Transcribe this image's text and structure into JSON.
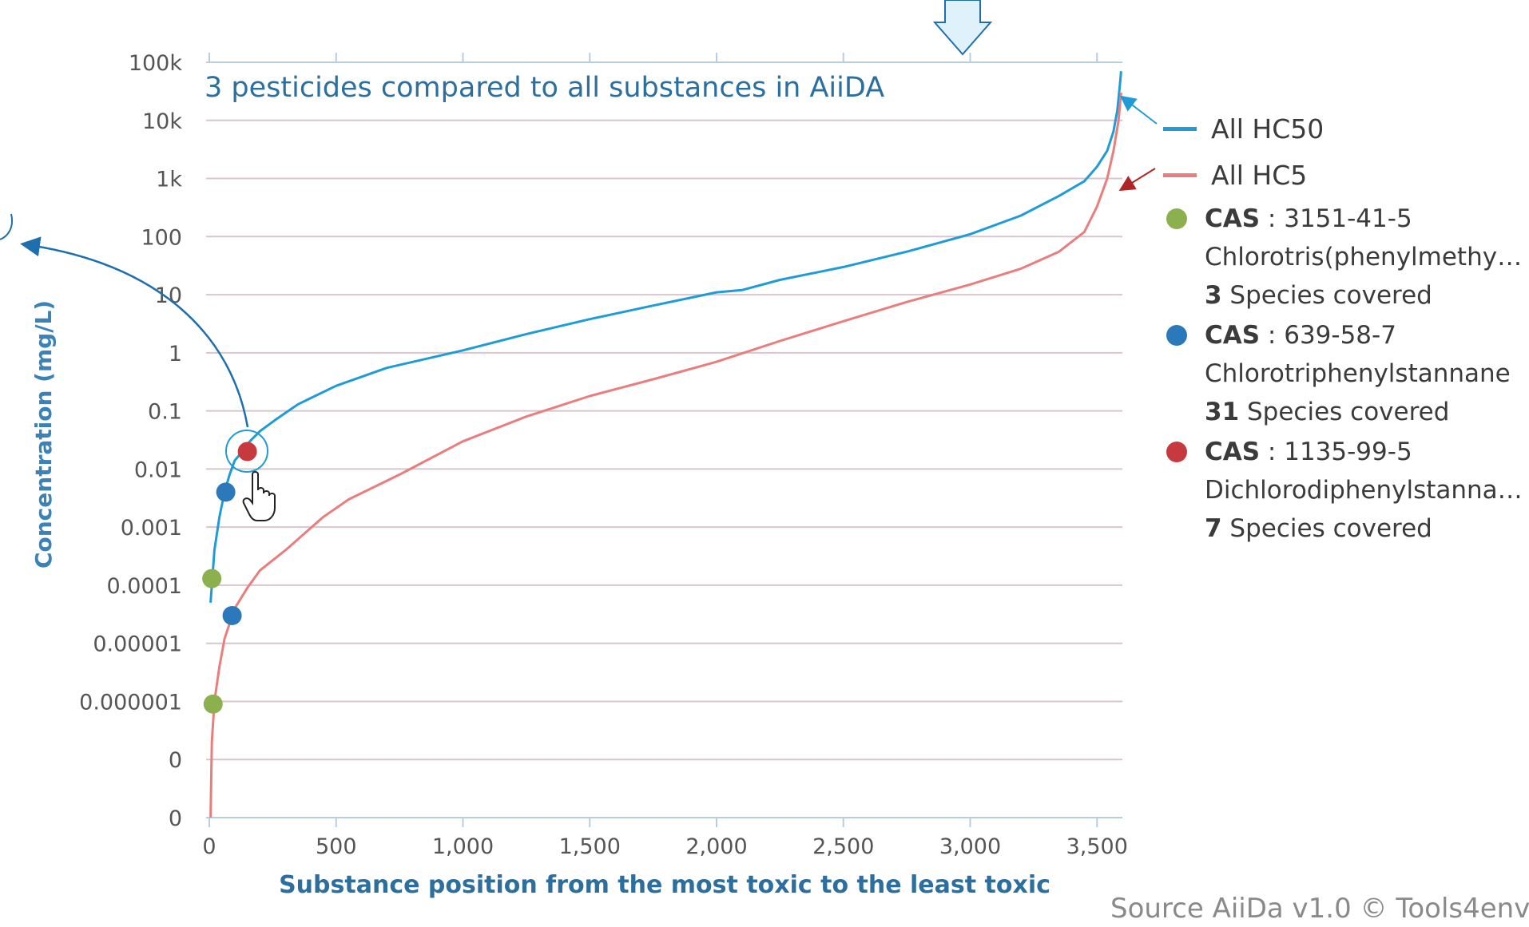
{
  "chart_data": {
    "type": "line",
    "title": "3 pesticides compared to all substances in AiiDA",
    "xlabel": "Substance position from the most toxic to the least toxic",
    "ylabel": "Concentration (mg/L)",
    "x_ticks": [
      "0",
      "500",
      "1,000",
      "1,500",
      "2,000",
      "2,500",
      "3,000",
      "3,500"
    ],
    "x_tick_values": [
      0,
      500,
      1000,
      1500,
      2000,
      2500,
      3000,
      3500
    ],
    "xlim": [
      0,
      3600
    ],
    "y_ticks": [
      "0",
      "0",
      "0.000001",
      "0.00001",
      "0.0001",
      "0.001",
      "0.01",
      "0.1",
      "1",
      "10",
      "100",
      "1k",
      "10k",
      "100k"
    ],
    "y_scale": "log",
    "y_decade_range": [
      -8,
      5
    ],
    "grid": true,
    "legend_position": "right",
    "series": [
      {
        "name": "All HC50",
        "color": "#1f9bd7",
        "x": [
          5,
          20,
          40,
          60,
          80,
          100,
          130,
          160,
          200,
          260,
          350,
          500,
          700,
          1000,
          1250,
          1500,
          1750,
          2000,
          2100,
          2250,
          2500,
          2750,
          3000,
          3200,
          3350,
          3450,
          3500,
          3540,
          3565,
          3580,
          3590,
          3595
        ],
        "y": [
          5e-05,
          0.0004,
          0.0015,
          0.004,
          0.008,
          0.014,
          0.02,
          0.03,
          0.045,
          0.07,
          0.13,
          0.27,
          0.55,
          1.1,
          2.1,
          3.8,
          6.5,
          11,
          12,
          18,
          30,
          55,
          110,
          230,
          500,
          900,
          1600,
          3000,
          6500,
          15000,
          40000,
          70000
        ]
      },
      {
        "name": "All HC5",
        "color": "#ea7e7e",
        "x": [
          5,
          10,
          20,
          40,
          60,
          100,
          150,
          200,
          300,
          450,
          550,
          750,
          1000,
          1250,
          1500,
          1750,
          2000,
          2250,
          2500,
          2750,
          3000,
          3200,
          3350,
          3450,
          3500,
          3540,
          3565,
          3585,
          3595
        ],
        "y": [
          1e-08,
          2e-07,
          1e-06,
          4e-06,
          1.2e-05,
          4e-05,
          9e-05,
          0.00018,
          0.0004,
          0.0015,
          0.003,
          0.008,
          0.03,
          0.08,
          0.18,
          0.35,
          0.7,
          1.6,
          3.5,
          7.5,
          15,
          28,
          55,
          120,
          330,
          1000,
          3000,
          10000,
          30000
        ]
      }
    ],
    "points": [
      {
        "cas": "3151-41-5",
        "color": "#8db04e",
        "coords": [
          [
            10,
            0.00013
          ],
          [
            15,
            9e-07
          ]
        ]
      },
      {
        "cas": "639-58-7",
        "color": "#2b78ba",
        "coords": [
          [
            65,
            0.004
          ],
          [
            90,
            3e-05
          ]
        ]
      },
      {
        "cas": "1135-99-5",
        "color": "#c63a3f",
        "coords": [
          [
            150,
            0.02
          ]
        ]
      }
    ]
  },
  "legend": {
    "hc50": {
      "label": "All HC50",
      "color": "#1f9bd7"
    },
    "hc5": {
      "label": "All HC5",
      "color": "#ea7e7e"
    },
    "substances": [
      {
        "cas_key": "CAS",
        "cas": " : 3151-41-5",
        "name": "Chlorotris(phenylmethyl)s…",
        "count": "3",
        "species_text": " Species covered",
        "color": "#8db04e"
      },
      {
        "cas_key": "CAS",
        "cas": " : 639-58-7",
        "name": "Chlorotriphenylstannane",
        "count": "31",
        "species_text": " Species covered",
        "color": "#2b78ba"
      },
      {
        "cas_key": "CAS",
        "cas": " : 1135-99-5",
        "name": "Dichlorodiphenylstannane",
        "count": "7",
        "species_text": " Species covered",
        "color": "#c63a3f"
      }
    ]
  },
  "source": "Source AiiDa v1.0 © Tools4env"
}
